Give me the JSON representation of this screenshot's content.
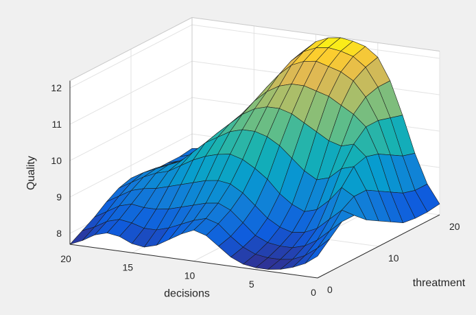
{
  "chart_data": {
    "type": "surface",
    "title": "",
    "xlabel": "decisions",
    "ylabel": "threatment",
    "zlabel": "Quality",
    "x_range": [
      0,
      20
    ],
    "y_range": [
      0,
      20
    ],
    "z_range": [
      7.7,
      12.2
    ],
    "x_ticks": [
      "0",
      "5",
      "10",
      "15",
      "20"
    ],
    "y_ticks": [
      "0",
      "10",
      "20"
    ],
    "z_ticks": [
      "8",
      "9",
      "10",
      "11",
      "12"
    ],
    "x_tick_values": [
      0,
      5,
      10,
      15,
      20
    ],
    "y_tick_values": [
      0,
      10,
      20
    ],
    "z_tick_values": [
      8,
      9,
      10,
      11,
      12
    ],
    "grid": true,
    "box": true,
    "colormap": "parula",
    "edge_color": "#1a1a1a",
    "surface_grid_x": [
      0,
      1,
      2,
      3,
      4,
      5,
      6,
      7,
      8,
      9,
      10,
      11,
      12,
      13,
      14,
      15,
      16,
      17,
      18,
      19,
      20
    ],
    "surface_grid_y": [
      0,
      2,
      4,
      6,
      8,
      10,
      12,
      14,
      16,
      18,
      20
    ],
    "quality": [
      [
        8.3,
        8.05,
        7.9,
        7.8,
        7.75,
        7.75,
        7.8,
        7.95,
        8.2,
        8.45,
        8.55,
        8.4,
        8.2,
        8.0,
        7.9,
        7.95,
        8.1,
        8.15,
        8.05,
        7.85,
        7.7
      ],
      [
        8.6,
        8.3,
        8.05,
        7.9,
        7.85,
        7.85,
        7.9,
        8.05,
        8.3,
        8.6,
        8.7,
        8.6,
        8.45,
        8.3,
        8.2,
        8.2,
        8.3,
        8.35,
        8.25,
        8.05,
        7.9
      ],
      [
        8.9,
        8.6,
        8.3,
        8.1,
        8.0,
        8.0,
        8.05,
        8.2,
        8.5,
        8.8,
        8.95,
        8.9,
        8.8,
        8.7,
        8.6,
        8.55,
        8.55,
        8.6,
        8.5,
        8.3,
        8.1
      ],
      [
        8.9,
        9.0,
        8.7,
        8.4,
        8.25,
        8.2,
        8.3,
        8.5,
        8.8,
        9.1,
        9.3,
        9.35,
        9.3,
        9.2,
        9.1,
        9.0,
        8.9,
        8.85,
        8.75,
        8.55,
        8.35
      ],
      [
        8.6,
        9.2,
        9.4,
        9.0,
        8.7,
        8.6,
        8.75,
        9.0,
        9.35,
        9.6,
        9.8,
        9.9,
        9.85,
        9.75,
        9.6,
        9.4,
        9.2,
        9.1,
        8.95,
        8.75,
        8.55
      ],
      [
        8.4,
        9.2,
        9.8,
        9.7,
        9.4,
        9.3,
        9.5,
        9.8,
        10.1,
        10.3,
        10.4,
        10.4,
        10.3,
        10.1,
        9.9,
        9.6,
        9.3,
        9.15,
        9.0,
        8.85,
        8.65
      ],
      [
        8.2,
        9.0,
        9.9,
        10.2,
        10.1,
        10.2,
        10.4,
        10.6,
        10.8,
        10.9,
        10.9,
        10.8,
        10.6,
        10.3,
        10.0,
        9.6,
        9.3,
        9.1,
        8.95,
        8.8,
        8.6
      ],
      [
        8.0,
        8.8,
        9.8,
        10.5,
        10.8,
        11.0,
        11.2,
        11.3,
        11.4,
        11.4,
        11.3,
        11.1,
        10.8,
        10.4,
        10.0,
        9.6,
        9.2,
        8.95,
        8.8,
        8.7,
        8.55
      ],
      [
        7.95,
        8.6,
        9.6,
        10.5,
        11.1,
        11.5,
        11.7,
        11.8,
        11.9,
        11.85,
        11.7,
        11.4,
        11.0,
        10.5,
        10.0,
        9.5,
        9.1,
        8.85,
        8.7,
        8.65,
        8.55
      ],
      [
        7.95,
        8.5,
        9.4,
        10.4,
        11.2,
        11.7,
        11.95,
        12.05,
        12.1,
        12.05,
        11.9,
        11.6,
        11.1,
        10.55,
        10.0,
        9.45,
        9.05,
        8.8,
        8.7,
        8.65,
        8.55
      ],
      [
        8.0,
        8.5,
        9.3,
        10.3,
        11.2,
        11.8,
        12.05,
        12.15,
        12.2,
        12.15,
        12.0,
        11.7,
        11.2,
        10.6,
        10.0,
        9.45,
        9.05,
        8.8,
        8.7,
        8.65,
        8.6
      ]
    ]
  }
}
